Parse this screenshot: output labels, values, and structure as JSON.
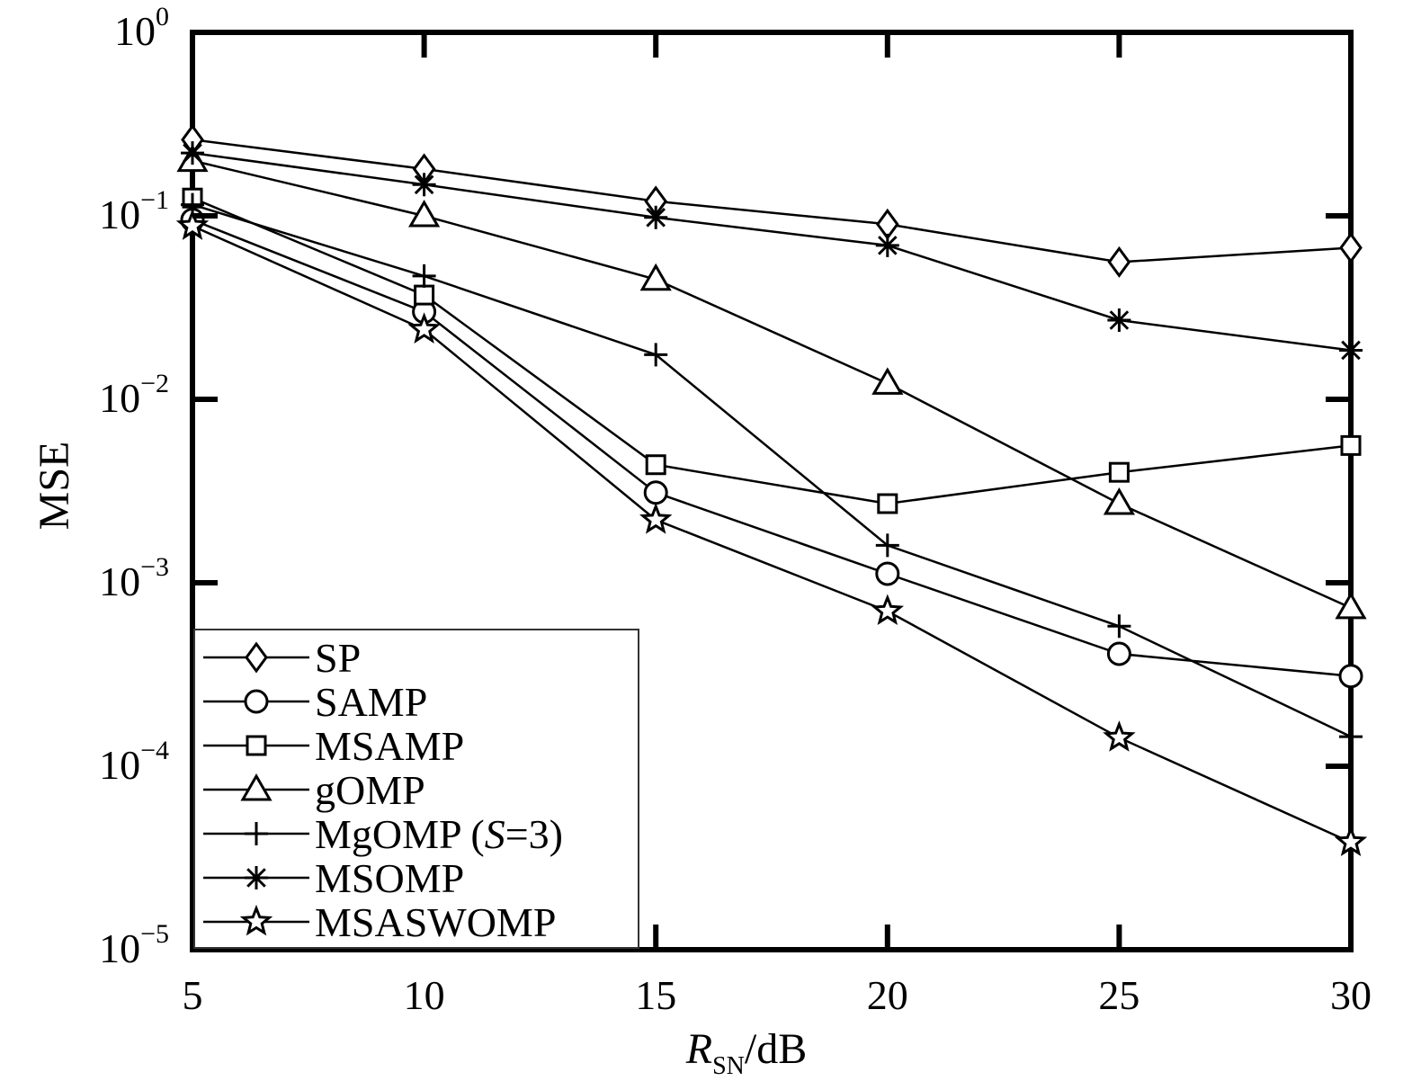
{
  "chart_data": {
    "type": "line",
    "title": "",
    "xlabel": "",
    "xlabel_parts": {
      "var": "R",
      "sub": "SN",
      "unit": "/dB"
    },
    "ylabel": "MSE",
    "xlim": [
      5,
      30
    ],
    "ylim": [
      1e-05,
      1
    ],
    "yscale": "log",
    "grid": false,
    "legend_position": "lower-left",
    "x": [
      5,
      10,
      15,
      20,
      25,
      30
    ],
    "x_tick_labels": [
      "5",
      "10",
      "15",
      "20",
      "25",
      "30"
    ],
    "y_ticks": [
      {
        "value": 1,
        "base": "10",
        "exp": "0"
      },
      {
        "value": 0.1,
        "base": "10",
        "exp": "−1"
      },
      {
        "value": 0.01,
        "base": "10",
        "exp": "−2"
      },
      {
        "value": 0.001,
        "base": "10",
        "exp": "−3"
      },
      {
        "value": 0.0001,
        "base": "10",
        "exp": "−4"
      },
      {
        "value": 1e-05,
        "base": "10",
        "exp": "−5"
      }
    ],
    "series": [
      {
        "name": "SP",
        "marker": "diamond",
        "values": [
          0.26,
          0.18,
          0.12,
          0.09,
          0.056,
          0.067
        ]
      },
      {
        "name": "SAMP",
        "marker": "circle",
        "values": [
          0.095,
          0.03,
          0.0031,
          0.00112,
          0.00041,
          0.00031
        ]
      },
      {
        "name": "MSAMP",
        "marker": "square",
        "values": [
          0.125,
          0.037,
          0.0044,
          0.0027,
          0.004,
          0.0056
        ]
      },
      {
        "name": "gOMP",
        "marker": "triangle",
        "values": [
          0.2,
          0.1,
          0.045,
          0.0122,
          0.0027,
          0.00073
        ]
      },
      {
        "name": "MgOMP (S=3)",
        "name_parts": {
          "pre": "MgOMP (",
          "italic": "S",
          "post": "=3)"
        },
        "marker": "plus",
        "values": [
          0.115,
          0.047,
          0.0175,
          0.0016,
          0.00058,
          0.000145
        ]
      },
      {
        "name": "MSOMP",
        "marker": "asterisk",
        "values": [
          0.22,
          0.148,
          0.098,
          0.069,
          0.027,
          0.0185
        ]
      },
      {
        "name": "MSASWOMP",
        "marker": "star",
        "values": [
          0.088,
          0.024,
          0.0022,
          0.0007,
          0.000143,
          3.85e-05
        ]
      }
    ],
    "colors": {
      "line": "#000000",
      "background": "#ffffff"
    }
  }
}
